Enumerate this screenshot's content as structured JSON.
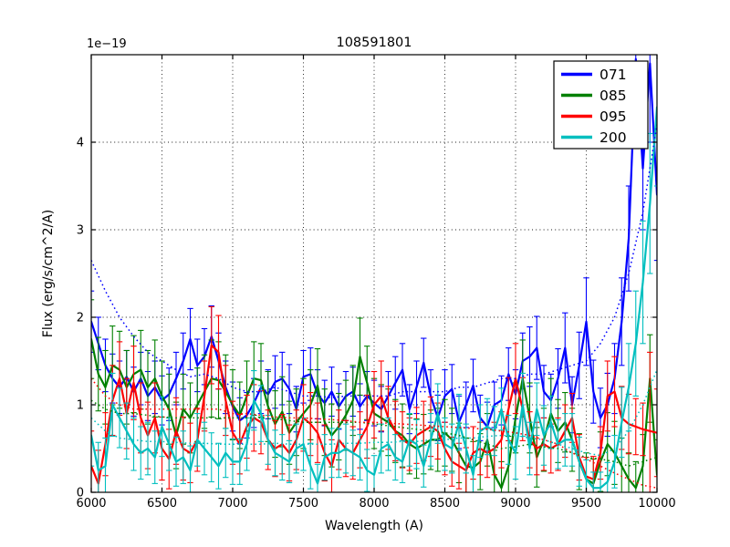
{
  "figure": {
    "title": "108591801",
    "offset_text": "1e−19",
    "xlabel": "Wavelength (A)",
    "ylabel": "Flux (erg/s/cm^2/A)",
    "background": "#ffffff",
    "frame_color": "#000000",
    "grid_style": "dotted"
  },
  "legend": {
    "position": "upper-right",
    "entries": [
      {
        "label": "071",
        "color": "#0000ff"
      },
      {
        "label": "085",
        "color": "#008000"
      },
      {
        "label": "095",
        "color": "#ff0000"
      },
      {
        "label": "200",
        "color": "#00bfbf"
      }
    ]
  },
  "chart_data": {
    "type": "line",
    "title": "108591801",
    "xlabel": "Wavelength (A)",
    "ylabel": "Flux (erg/s/cm^2/A)",
    "y_scale_factor": "1e-19",
    "xlim": [
      6000,
      10000
    ],
    "ylim": [
      0,
      5
    ],
    "xticks": [
      6000,
      6500,
      7000,
      7500,
      8000,
      8500,
      9000,
      9500,
      10000
    ],
    "yticks": [
      0,
      1,
      2,
      3,
      4
    ],
    "grid": true,
    "legend_position": "upper right",
    "x": [
      6000,
      6050,
      6100,
      6150,
      6200,
      6250,
      6300,
      6350,
      6400,
      6450,
      6500,
      6550,
      6600,
      6650,
      6700,
      6750,
      6800,
      6850,
      6900,
      6950,
      7000,
      7050,
      7100,
      7150,
      7200,
      7250,
      7300,
      7350,
      7400,
      7450,
      7500,
      7550,
      7600,
      7650,
      7700,
      7750,
      7800,
      7850,
      7900,
      7950,
      8000,
      8050,
      8100,
      8150,
      8200,
      8250,
      8300,
      8350,
      8400,
      8450,
      8500,
      8550,
      8600,
      8650,
      8700,
      8750,
      8800,
      8850,
      8900,
      8950,
      9000,
      9050,
      9100,
      9150,
      9200,
      9250,
      9300,
      9350,
      9400,
      9450,
      9500,
      9550,
      9600,
      9650,
      9700,
      9750,
      9800,
      9850,
      9900,
      9950,
      10000
    ],
    "series": [
      {
        "name": "071",
        "color": "#0000ff",
        "y": [
          1.95,
          1.7,
          1.45,
          1.3,
          1.2,
          1.32,
          1.15,
          1.3,
          1.1,
          1.2,
          1.05,
          1.12,
          1.3,
          1.5,
          1.75,
          1.45,
          1.55,
          1.78,
          1.5,
          1.2,
          0.98,
          0.82,
          0.88,
          1.02,
          1.2,
          1.12,
          1.26,
          1.3,
          1.18,
          0.95,
          1.32,
          1.35,
          1.12,
          1.02,
          1.15,
          0.98,
          1.1,
          1.15,
          0.98,
          1.1,
          1.02,
          0.95,
          1.1,
          1.25,
          1.4,
          0.95,
          1.2,
          1.48,
          1.1,
          0.85,
          1.1,
          1.18,
          0.8,
          1.0,
          1.22,
          0.85,
          0.75,
          1.0,
          1.05,
          1.35,
          1.12,
          1.5,
          1.55,
          1.65,
          1.15,
          1.05,
          1.3,
          1.65,
          1.0,
          1.45,
          1.95,
          1.15,
          0.85,
          1.0,
          1.3,
          1.95,
          2.9,
          4.95,
          3.7,
          4.9,
          3.4
        ],
        "err": [
          0.35,
          0.3,
          0.3,
          0.28,
          0.3,
          0.3,
          0.28,
          0.3,
          0.28,
          0.3,
          0.28,
          0.3,
          0.3,
          0.32,
          0.35,
          0.3,
          0.32,
          0.35,
          0.32,
          0.3,
          0.28,
          0.26,
          0.26,
          0.28,
          0.3,
          0.28,
          0.3,
          0.3,
          0.28,
          0.26,
          0.3,
          0.3,
          0.28,
          0.26,
          0.28,
          0.26,
          0.28,
          0.28,
          0.26,
          0.28,
          0.26,
          0.26,
          0.28,
          0.3,
          0.3,
          0.28,
          0.3,
          0.28,
          0.3,
          0.26,
          0.3,
          0.28,
          0.3,
          0.26,
          0.3,
          0.26,
          0.28,
          0.26,
          0.28,
          0.3,
          0.28,
          0.32,
          0.34,
          0.36,
          0.3,
          0.3,
          0.34,
          0.4,
          0.32,
          0.38,
          0.5,
          0.36,
          0.34,
          0.36,
          0.4,
          0.5,
          0.6,
          0.85,
          0.7,
          0.9,
          0.75
        ]
      },
      {
        "name": "085",
        "color": "#008000",
        "y": [
          1.75,
          1.35,
          1.2,
          1.45,
          1.4,
          1.2,
          1.35,
          1.4,
          1.2,
          1.3,
          1.1,
          0.95,
          0.65,
          0.95,
          0.85,
          1.0,
          1.15,
          1.3,
          1.28,
          1.15,
          1.0,
          0.88,
          1.1,
          1.3,
          1.28,
          0.98,
          0.78,
          0.92,
          0.68,
          0.8,
          0.9,
          1.0,
          1.22,
          0.8,
          0.65,
          0.75,
          0.88,
          1.05,
          1.55,
          1.25,
          0.9,
          0.85,
          0.8,
          0.7,
          0.65,
          0.55,
          0.5,
          0.55,
          0.6,
          0.6,
          0.68,
          0.6,
          0.45,
          0.3,
          0.28,
          0.35,
          0.6,
          0.2,
          0.05,
          0.3,
          0.85,
          1.3,
          0.85,
          0.4,
          0.6,
          0.9,
          0.7,
          0.8,
          0.6,
          0.35,
          0.15,
          0.1,
          0.35,
          0.55,
          0.45,
          0.3,
          0.15,
          0.05,
          0.3,
          1.3,
          0.2
        ],
        "err": [
          0.45,
          0.42,
          0.42,
          0.45,
          0.44,
          0.42,
          0.44,
          0.45,
          0.42,
          0.44,
          0.4,
          0.4,
          0.38,
          0.4,
          0.4,
          0.42,
          0.42,
          0.44,
          0.44,
          0.42,
          0.4,
          0.38,
          0.4,
          0.42,
          0.42,
          0.4,
          0.38,
          0.4,
          0.36,
          0.38,
          0.4,
          0.4,
          0.42,
          0.38,
          0.36,
          0.38,
          0.4,
          0.4,
          0.44,
          0.42,
          0.4,
          0.38,
          0.38,
          0.36,
          0.36,
          0.34,
          0.34,
          0.34,
          0.34,
          0.36,
          0.38,
          0.36,
          0.34,
          0.32,
          0.3,
          0.32,
          0.3,
          0.28,
          0.3,
          0.34,
          0.4,
          0.44,
          0.4,
          0.34,
          0.36,
          0.4,
          0.36,
          0.34,
          0.36,
          0.32,
          0.3,
          0.28,
          0.34,
          0.36,
          0.36,
          0.32,
          0.3,
          0.3,
          0.36,
          0.5,
          0.4
        ]
      },
      {
        "name": "095",
        "color": "#ff0000",
        "y": [
          0.3,
          0.1,
          0.55,
          1.05,
          1.3,
          0.9,
          1.25,
          0.85,
          0.65,
          0.85,
          0.5,
          0.38,
          0.7,
          0.5,
          0.45,
          0.6,
          1.1,
          1.68,
          1.6,
          1.05,
          0.68,
          0.55,
          0.75,
          0.85,
          0.8,
          0.6,
          0.5,
          0.55,
          0.45,
          0.6,
          0.85,
          0.78,
          0.68,
          0.45,
          0.3,
          0.6,
          0.5,
          0.45,
          0.6,
          0.75,
          1.0,
          1.1,
          0.85,
          0.7,
          0.6,
          0.55,
          0.65,
          0.7,
          0.75,
          0.7,
          0.5,
          0.35,
          0.3,
          0.25,
          0.45,
          0.5,
          0.45,
          0.5,
          0.6,
          0.95,
          1.3,
          0.95,
          0.6,
          0.5,
          0.55,
          0.5,
          0.55,
          0.7,
          0.85,
          0.4,
          0.18,
          0.15,
          0.45,
          1.1,
          1.15,
          0.85,
          0.78,
          0.75,
          0.72,
          0.7,
          0.68
        ],
        "err": [
          0.4,
          0.38,
          0.36,
          0.4,
          0.42,
          0.4,
          0.42,
          0.4,
          0.38,
          0.4,
          0.36,
          0.34,
          0.38,
          0.36,
          0.34,
          0.36,
          0.4,
          0.44,
          0.42,
          0.4,
          0.36,
          0.34,
          0.36,
          0.38,
          0.36,
          0.34,
          0.32,
          0.34,
          0.32,
          0.34,
          0.38,
          0.36,
          0.34,
          0.32,
          0.3,
          0.34,
          0.32,
          0.3,
          0.32,
          0.36,
          0.38,
          0.4,
          0.36,
          0.34,
          0.32,
          0.3,
          0.32,
          0.34,
          0.34,
          0.32,
          0.3,
          0.28,
          0.26,
          0.26,
          0.3,
          0.3,
          0.28,
          0.3,
          0.32,
          0.36,
          0.4,
          0.36,
          0.32,
          0.3,
          0.3,
          0.28,
          0.3,
          0.3,
          0.28,
          0.26,
          0.22,
          0.26,
          0.3,
          0.4,
          0.4,
          0.36,
          0.34,
          0.32,
          0.3,
          0.9,
          0.5
        ]
      },
      {
        "name": "200",
        "color": "#00bfbf",
        "y": [
          0.65,
          0.25,
          0.3,
          1.0,
          0.85,
          0.7,
          0.55,
          0.45,
          0.5,
          0.4,
          0.75,
          0.55,
          0.35,
          0.4,
          0.25,
          0.6,
          0.5,
          0.4,
          0.3,
          0.45,
          0.35,
          0.35,
          0.55,
          1.05,
          0.9,
          0.6,
          0.45,
          0.4,
          0.35,
          0.5,
          0.55,
          0.3,
          0.1,
          0.4,
          0.45,
          0.45,
          0.5,
          0.45,
          0.4,
          0.25,
          0.2,
          0.5,
          0.55,
          0.4,
          0.35,
          0.6,
          0.55,
          0.3,
          0.6,
          0.9,
          0.55,
          0.5,
          0.8,
          0.5,
          0.2,
          0.7,
          0.75,
          0.7,
          0.95,
          0.6,
          0.45,
          1.0,
          0.5,
          0.95,
          0.65,
          0.8,
          0.55,
          0.6,
          0.6,
          0.35,
          0.15,
          0.05,
          0.05,
          0.12,
          0.35,
          0.8,
          1.2,
          1.7,
          2.4,
          3.3,
          4.4
        ],
        "err": [
          0.35,
          0.32,
          0.32,
          0.36,
          0.34,
          0.32,
          0.3,
          0.3,
          0.3,
          0.3,
          0.34,
          0.3,
          0.28,
          0.3,
          0.28,
          0.3,
          0.3,
          0.28,
          0.26,
          0.28,
          0.26,
          0.26,
          0.3,
          0.34,
          0.32,
          0.28,
          0.26,
          0.26,
          0.24,
          0.28,
          0.3,
          0.26,
          0.22,
          0.26,
          0.28,
          0.28,
          0.28,
          0.26,
          0.26,
          0.24,
          0.22,
          0.28,
          0.3,
          0.26,
          0.24,
          0.3,
          0.28,
          0.24,
          0.3,
          0.34,
          0.3,
          0.28,
          0.32,
          0.28,
          0.22,
          0.3,
          0.32,
          0.28,
          0.24,
          0.28,
          0.3,
          0.36,
          0.3,
          0.3,
          0.34,
          0.3,
          0.28,
          0.3,
          0.3,
          0.28,
          0.22,
          0.18,
          0.18,
          0.22,
          0.3,
          0.4,
          0.5,
          0.6,
          0.7,
          0.8,
          0.9
        ]
      }
    ],
    "x_dotted": [
      6000,
      6100,
      6200,
      6300,
      6400,
      6500,
      6600,
      6700,
      6800,
      6900,
      7000,
      7100,
      7200,
      7300,
      7400,
      7500,
      7600,
      7700,
      7800,
      7900,
      8000,
      8100,
      8200,
      8300,
      8400,
      8500,
      8600,
      8700,
      8800,
      8900,
      9000,
      9100,
      9200,
      9300,
      9400,
      9500,
      9600,
      9700,
      9800,
      9900,
      10000
    ],
    "dotted_series": [
      {
        "name": "085-noise",
        "color": "#008000",
        "y": [
          1.05,
          0.95,
          0.9,
          0.9,
          0.88,
          0.86,
          0.85,
          0.85,
          0.85,
          0.85,
          0.85,
          0.85,
          0.85,
          0.84,
          0.82,
          0.8,
          0.8,
          0.8,
          0.8,
          0.8,
          0.78,
          0.76,
          0.74,
          0.72,
          0.7,
          0.68,
          0.65,
          0.6,
          0.55,
          0.5,
          0.52,
          0.55,
          0.52,
          0.5,
          0.45,
          0.4,
          0.38,
          0.35,
          0.3,
          0.35,
          0.4
        ]
      },
      {
        "name": "095-noise",
        "color": "#ff0000",
        "y": [
          1.3,
          1.1,
          1.0,
          0.95,
          0.95,
          0.95,
          0.95,
          0.95,
          0.95,
          0.95,
          0.9,
          0.9,
          0.88,
          0.86,
          0.85,
          0.85,
          0.84,
          0.83,
          0.82,
          0.8,
          0.8,
          0.79,
          0.78,
          0.77,
          0.76,
          0.75,
          0.74,
          0.73,
          0.72,
          0.7,
          0.68,
          0.65,
          0.6,
          0.55,
          0.45,
          0.38,
          0.3,
          0.22,
          0.15,
          0.08,
          0.05
        ]
      },
      {
        "name": "200-noise",
        "color": "#00bfbf",
        "y": [
          0.85,
          0.7,
          0.62,
          0.6,
          0.58,
          0.58,
          0.57,
          0.56,
          0.56,
          0.55,
          0.55,
          0.55,
          0.55,
          0.56,
          0.55,
          0.55,
          0.55,
          0.55,
          0.56,
          0.56,
          0.57,
          0.57,
          0.58,
          0.58,
          0.6,
          0.6,
          0.62,
          0.62,
          0.64,
          0.65,
          0.65,
          0.62,
          0.6,
          0.55,
          0.5,
          0.45,
          0.42,
          0.5,
          0.7,
          1.0,
          1.4
        ]
      },
      {
        "name": "071-noise",
        "color": "#0000ff",
        "y": [
          2.65,
          2.3,
          2.0,
          1.78,
          1.6,
          1.5,
          1.4,
          1.32,
          1.35,
          1.3,
          1.2,
          1.15,
          1.15,
          1.2,
          1.15,
          1.1,
          1.1,
          1.08,
          1.1,
          1.1,
          1.1,
          1.1,
          1.15,
          1.15,
          1.15,
          1.15,
          1.2,
          1.2,
          1.25,
          1.3,
          1.3,
          1.35,
          1.35,
          1.4,
          1.45,
          1.5,
          1.7,
          2.0,
          2.5,
          3.2,
          4.2
        ]
      }
    ]
  }
}
